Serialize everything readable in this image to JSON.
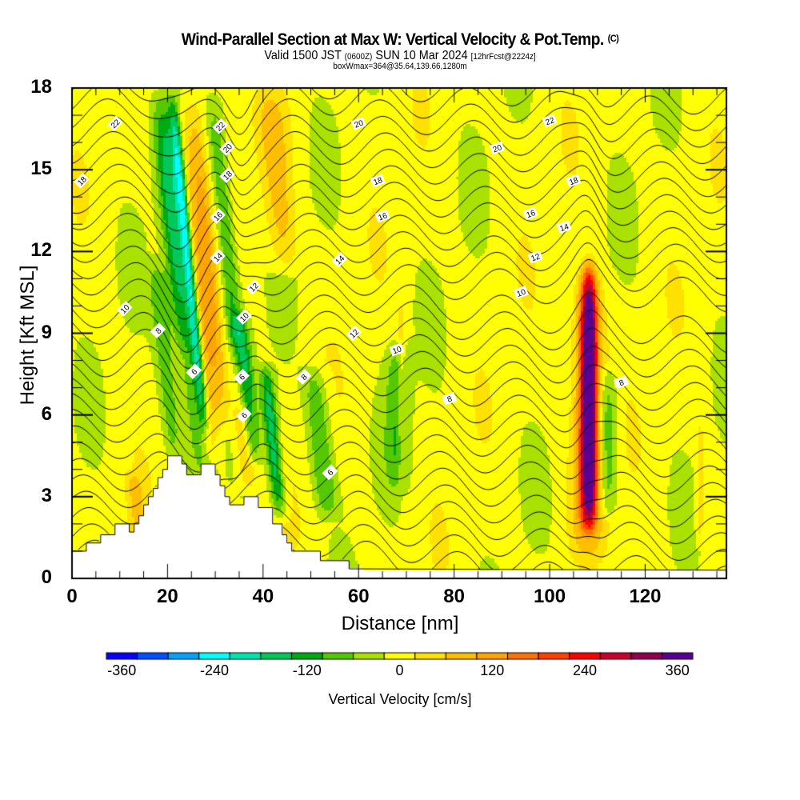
{
  "header": {
    "title": "Wind-Parallel Section at Max W: Vertical Velocity & Pot.Temp.",
    "copyright": "(C)",
    "valid_prefix": "Valid 1500 JST",
    "valid_utc": "(0600Z)",
    "valid_date": "SUN 10 Mar 2024",
    "forecast": "[12hrFcst@2224z]",
    "boxwmax": "boxWmax=364@35.64,139.66,1280m"
  },
  "chart_data": {
    "type": "heatmap",
    "title": "Wind-Parallel Section at Max W: Vertical Velocity & Pot.Temp.",
    "xlabel": "Distance [nm]",
    "ylabel": "Height [Kft MSL]",
    "xlim": [
      0,
      137
    ],
    "ylim": [
      0,
      18
    ],
    "xticks": [
      "0",
      "20",
      "40",
      "60",
      "80",
      "100",
      "120"
    ],
    "xtick_values": [
      0,
      20,
      40,
      60,
      80,
      100,
      120
    ],
    "yticks": [
      "0",
      "3",
      "6",
      "9",
      "12",
      "15",
      "18"
    ],
    "ytick_values": [
      0,
      3,
      6,
      9,
      12,
      15,
      18
    ],
    "colorbar": {
      "label": "Vertical Velocity [cm/s]",
      "tick_labels": [
        "-360",
        "-240",
        "-120",
        "0",
        "120",
        "240",
        "360"
      ],
      "tick_values": [
        -360,
        -240,
        -120,
        0,
        120,
        240,
        360
      ],
      "min": -380,
      "max": 380,
      "step": 40,
      "colors": [
        "#0b00ff",
        "#0050ff",
        "#00a4ff",
        "#00ffff",
        "#00e6b0",
        "#00c85a",
        "#00aa14",
        "#55c800",
        "#aae100",
        "#ffff00",
        "#ffe100",
        "#ffbe00",
        "#ffa500",
        "#ff7300",
        "#ff4100",
        "#ff0000",
        "#cd0032",
        "#910050",
        "#5a0091"
      ]
    },
    "terrain_kft": {
      "x_nm": [
        0,
        3,
        3,
        6,
        6,
        9,
        9,
        12,
        12,
        13,
        13,
        14,
        14,
        15,
        15,
        16,
        16,
        17,
        17,
        18,
        18,
        19,
        19,
        20,
        20,
        23,
        23,
        24,
        24,
        27,
        27,
        30,
        30,
        31,
        31,
        32,
        32,
        33,
        33,
        36,
        36,
        39,
        39,
        42,
        42,
        44,
        44,
        45,
        45,
        46,
        46,
        52,
        52,
        58,
        58,
        61
      ],
      "height": [
        1.0,
        1.0,
        1.3,
        1.3,
        1.6,
        1.6,
        2.0,
        2.0,
        1.7,
        1.7,
        2.0,
        2.0,
        2.3,
        2.3,
        2.7,
        2.7,
        3.0,
        3.0,
        3.3,
        3.3,
        3.7,
        3.7,
        4.0,
        4.0,
        4.5,
        4.5,
        4.2,
        4.2,
        3.8,
        3.8,
        4.2,
        4.2,
        3.8,
        3.8,
        3.4,
        3.4,
        3.0,
        3.0,
        2.7,
        2.7,
        3.0,
        3.0,
        2.6,
        2.6,
        2.0,
        2.0,
        1.6,
        1.6,
        1.3,
        1.3,
        1.0,
        1.0,
        0.65,
        0.65,
        0.35,
        0.35
      ]
    },
    "bottom_level_kft": 0.3,
    "vertical_velocity_features": [
      {
        "x_nm": 24.5,
        "z_bottom": 5,
        "z_top": 18,
        "width_nm": 1.2,
        "peak_cms": -250
      },
      {
        "x_nm": 23.5,
        "z_bottom": 3,
        "z_top": 18,
        "width_nm": 2.5,
        "peak_cms": -120
      },
      {
        "x_nm": 32.5,
        "z_bottom": 6,
        "z_top": 18,
        "width_nm": 2.0,
        "peak_cms": -110
      },
      {
        "x_nm": 36.5,
        "z_bottom": 4,
        "z_top": 10,
        "width_nm": 1.8,
        "peak_cms": -120
      },
      {
        "x_nm": 42,
        "z_bottom": 2,
        "z_top": 8,
        "width_nm": 1.5,
        "peak_cms": -160
      },
      {
        "x_nm": 52,
        "z_bottom": 2,
        "z_top": 8,
        "width_nm": 2.5,
        "peak_cms": -100
      },
      {
        "x_nm": 19.5,
        "z_bottom": 4,
        "z_top": 12,
        "width_nm": 2.0,
        "peak_cms": -90
      },
      {
        "x_nm": 20.5,
        "z_bottom": 8,
        "z_top": 18,
        "width_nm": 2.0,
        "peak_cms": -70
      },
      {
        "x_nm": 68,
        "z_bottom": 3,
        "z_top": 9,
        "width_nm": 2.5,
        "peak_cms": -80
      },
      {
        "x_nm": 112,
        "z_bottom": 2,
        "z_top": 8,
        "width_nm": 2.0,
        "peak_cms": -100
      },
      {
        "x_nm": 108.2,
        "z_bottom": 1.5,
        "z_top": 12,
        "width_nm": 1.6,
        "peak_cms": 364
      },
      {
        "x_nm": 108,
        "z_bottom": 0.5,
        "z_top": 11.5,
        "width_nm": 3.2,
        "peak_cms": 150
      },
      {
        "x_nm": 25.5,
        "z_bottom": 4,
        "z_top": 18,
        "width_nm": 2.0,
        "peak_cms": 130
      },
      {
        "x_nm": 28.5,
        "z_bottom": 5,
        "z_top": 18,
        "width_nm": 2.0,
        "peak_cms": 110
      },
      {
        "x_nm": 35.5,
        "z_bottom": 3,
        "z_top": 9,
        "width_nm": 1.8,
        "peak_cms": 100
      },
      {
        "x_nm": 43,
        "z_bottom": 11,
        "z_top": 18,
        "width_nm": 3.0,
        "peak_cms": 90
      },
      {
        "x_nm": 13.5,
        "z_bottom": 1.5,
        "z_top": 4,
        "width_nm": 1.5,
        "peak_cms": 70
      },
      {
        "x_nm": 131.5,
        "z_bottom": 1,
        "z_top": 6,
        "width_nm": 0.8,
        "peak_cms": 60
      },
      {
        "x_nm": 69,
        "z_bottom": 3,
        "z_top": 10.5,
        "width_nm": 0.8,
        "peak_cms": 50
      }
    ],
    "theta_contour_labels": [
      {
        "label": "22",
        "x_nm": 9,
        "z": 16.7
      },
      {
        "label": "18",
        "x_nm": 2,
        "z": 14.6
      },
      {
        "label": "22",
        "x_nm": 31,
        "z": 16.6
      },
      {
        "label": "20",
        "x_nm": 32.5,
        "z": 15.8
      },
      {
        "label": "18",
        "x_nm": 32.5,
        "z": 14.8
      },
      {
        "label": "16",
        "x_nm": 30.5,
        "z": 13.3
      },
      {
        "label": "14",
        "x_nm": 30.5,
        "z": 11.8
      },
      {
        "label": "20",
        "x_nm": 60,
        "z": 16.7
      },
      {
        "label": "18",
        "x_nm": 64,
        "z": 14.6
      },
      {
        "label": "16",
        "x_nm": 65,
        "z": 13.3
      },
      {
        "label": "14",
        "x_nm": 56,
        "z": 11.7
      },
      {
        "label": "12",
        "x_nm": 38,
        "z": 10.7
      },
      {
        "label": "10",
        "x_nm": 11,
        "z": 9.9
      },
      {
        "label": "8",
        "x_nm": 18,
        "z": 9.1
      },
      {
        "label": "10",
        "x_nm": 36,
        "z": 9.6
      },
      {
        "label": "6",
        "x_nm": 25.5,
        "z": 7.6
      },
      {
        "label": "6",
        "x_nm": 35.5,
        "z": 7.4
      },
      {
        "label": "6",
        "x_nm": 36,
        "z": 6.0
      },
      {
        "label": "12",
        "x_nm": 59,
        "z": 9.0
      },
      {
        "label": "8",
        "x_nm": 48.5,
        "z": 7.4
      },
      {
        "label": "6",
        "x_nm": 54,
        "z": 3.9
      },
      {
        "label": "10",
        "x_nm": 68,
        "z": 8.4
      },
      {
        "label": "8",
        "x_nm": 79,
        "z": 6.6
      },
      {
        "label": "22",
        "x_nm": 100,
        "z": 16.8
      },
      {
        "label": "20",
        "x_nm": 89,
        "z": 15.8
      },
      {
        "label": "18",
        "x_nm": 105,
        "z": 14.6
      },
      {
        "label": "16",
        "x_nm": 96,
        "z": 13.4
      },
      {
        "label": "14",
        "x_nm": 103,
        "z": 12.9
      },
      {
        "label": "12",
        "x_nm": 97,
        "z": 11.8
      },
      {
        "label": "10",
        "x_nm": 94,
        "z": 10.5
      },
      {
        "label": "8",
        "x_nm": 115,
        "z": 7.2
      }
    ]
  }
}
